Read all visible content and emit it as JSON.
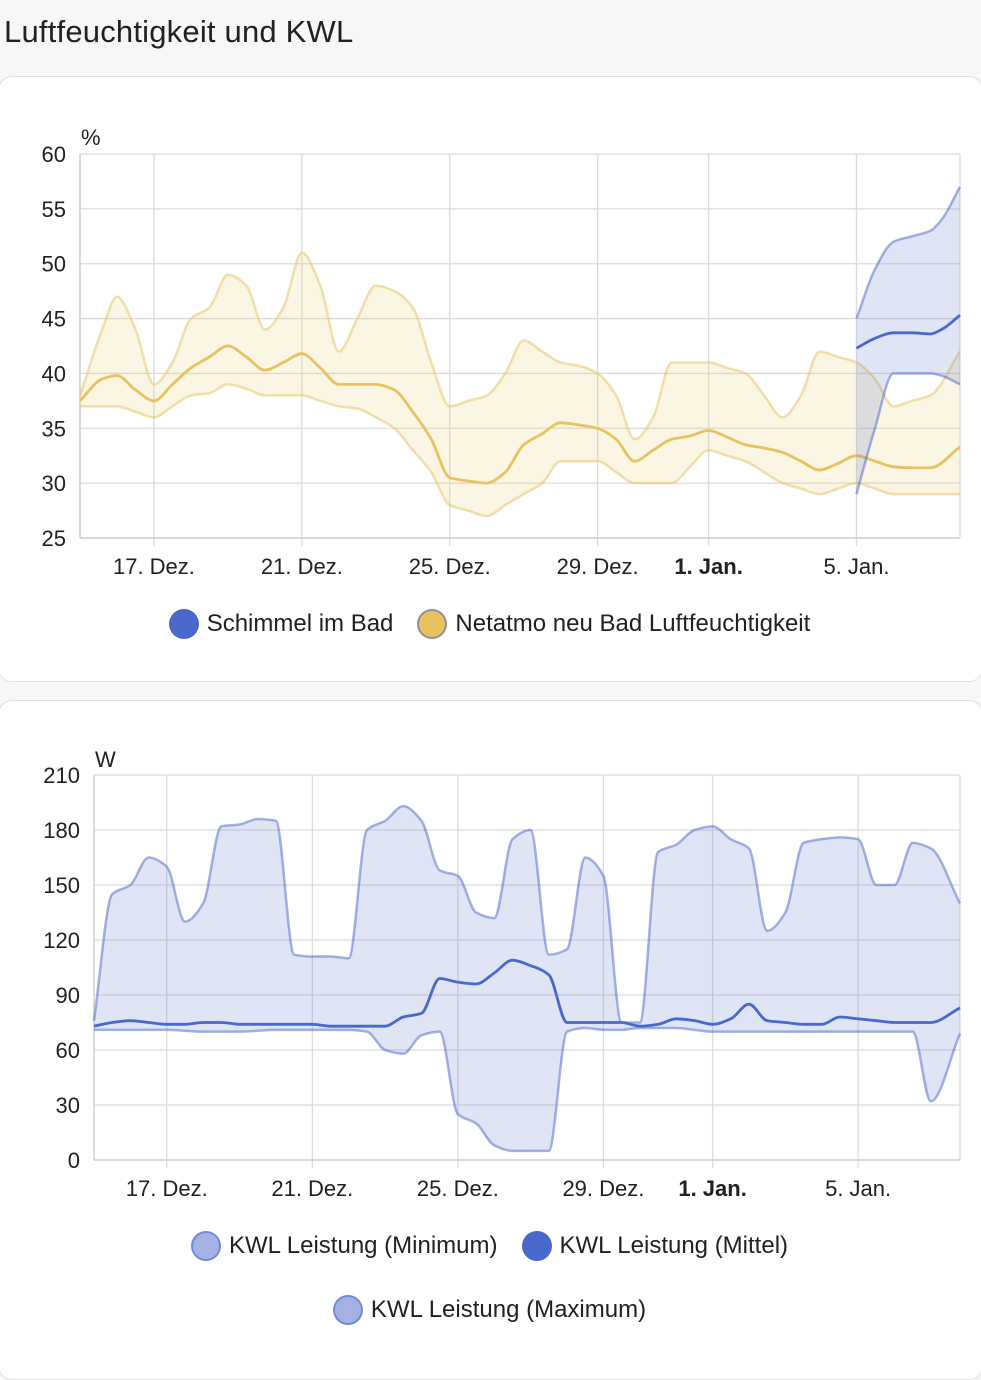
{
  "title": "Luftfeuchtigkeit und KWL",
  "chart_data": [
    {
      "type": "line",
      "unit": "%",
      "ylim": [
        25,
        60
      ],
      "yticks": [
        25,
        30,
        35,
        40,
        45,
        50,
        55,
        60
      ],
      "xlim": [
        0,
        23.8
      ],
      "xticks": [
        {
          "label": "17. Dez.",
          "x": 2,
          "bold": false
        },
        {
          "label": "21. Dez.",
          "x": 6,
          "bold": false
        },
        {
          "label": "25. Dez.",
          "x": 10,
          "bold": false
        },
        {
          "label": "29. Dez.",
          "x": 14,
          "bold": false
        },
        {
          "label": "1. Jan.",
          "x": 17,
          "bold": true
        },
        {
          "label": "5. Jan.",
          "x": 21,
          "bold": false
        }
      ],
      "legend": [
        {
          "label": "Schimmel im Bad",
          "color": "#4a67cc"
        },
        {
          "label": "Netatmo neu Bad Luftfeuchtigkeit",
          "color": "#e8c25e"
        }
      ],
      "series": [
        {
          "name": "Netatmo neu Bad Luftfeuchtigkeit",
          "color": "#e8c25e",
          "x": [
            0,
            0.6,
            1,
            1.5,
            2,
            2.5,
            3,
            3.5,
            4,
            4.5,
            5,
            5.5,
            6,
            6.5,
            7,
            7.5,
            8,
            8.5,
            9,
            9.5,
            10,
            10.5,
            11,
            11.5,
            12,
            12.5,
            13,
            13.5,
            14,
            14.5,
            15,
            15.5,
            16,
            16.5,
            17,
            17.5,
            18,
            18.5,
            19,
            19.5,
            20,
            20.5,
            21,
            21.5,
            22,
            22.5,
            23,
            23.8
          ],
          "mean": [
            37.5,
            39.5,
            39.8,
            38.5,
            37.5,
            39,
            40.5,
            41.5,
            42.5,
            41.5,
            40.3,
            41,
            41.8,
            40.5,
            39,
            39,
            39,
            38.5,
            36.5,
            34,
            30.5,
            30.2,
            30,
            31,
            33.5,
            34.5,
            35.5,
            35.3,
            35,
            34,
            32,
            33,
            34,
            34.3,
            34.8,
            34.2,
            33.5,
            33.2,
            32.8,
            32,
            31.2,
            31.8,
            32.5,
            32,
            31.5,
            31.4,
            31.4,
            33.3
          ],
          "min": [
            37,
            37,
            37,
            36.5,
            36,
            37,
            38,
            38.2,
            39,
            38.6,
            38,
            38,
            38,
            37.5,
            37,
            36.8,
            36,
            35,
            33,
            31,
            28,
            27.5,
            27,
            28,
            29,
            30,
            32,
            32,
            32,
            31,
            30,
            30,
            30,
            31.5,
            33,
            32.5,
            32,
            31,
            30,
            29.5,
            29,
            29.5,
            30,
            29.5,
            29,
            29,
            29,
            29
          ],
          "max": [
            38,
            44,
            47,
            44,
            39,
            41,
            45,
            46,
            49,
            48,
            44,
            46,
            51,
            48,
            42,
            45,
            48,
            47.5,
            46,
            41,
            37,
            37.5,
            38,
            40,
            43,
            42,
            41,
            40.7,
            40,
            38,
            34,
            36,
            41,
            41,
            41,
            40.5,
            40,
            38,
            36,
            38,
            42,
            41.5,
            41,
            39.5,
            37,
            37.5,
            38,
            42
          ]
        },
        {
          "name": "Schimmel im Bad",
          "color": "#4a67cc",
          "x": [
            21,
            21.5,
            22,
            22.5,
            23,
            23.3,
            23.8
          ],
          "mean": [
            42.3,
            43.2,
            43.7,
            43.7,
            43.6,
            44,
            45.3
          ],
          "min": [
            29,
            35,
            40,
            40,
            40,
            39.8,
            39
          ],
          "max": [
            45,
            49.5,
            52,
            52.5,
            53,
            54,
            57
          ]
        }
      ]
    },
    {
      "type": "line",
      "unit": "W",
      "ylim": [
        0,
        210
      ],
      "yticks": [
        0,
        30,
        60,
        90,
        120,
        150,
        180,
        210
      ],
      "xlim": [
        0,
        23.8
      ],
      "xticks": [
        {
          "label": "17. Dez.",
          "x": 2,
          "bold": false
        },
        {
          "label": "21. Dez.",
          "x": 6,
          "bold": false
        },
        {
          "label": "25. Dez.",
          "x": 10,
          "bold": false
        },
        {
          "label": "29. Dez.",
          "x": 14,
          "bold": false
        },
        {
          "label": "1. Jan.",
          "x": 17,
          "bold": true
        },
        {
          "label": "5. Jan.",
          "x": 21,
          "bold": false
        }
      ],
      "legend": [
        {
          "label": "KWL Leistung (Minimum)",
          "color": "#a3b1e3"
        },
        {
          "label": "KWL Leistung (Mittel)",
          "color": "#4a67cc"
        },
        {
          "label": "KWL Leistung (Maximum)",
          "color": "#a3b1e3"
        }
      ],
      "series": [
        {
          "name": "KWL Leistung (Mittel)",
          "color": "#4a67cc",
          "x": [
            0,
            0.5,
            1,
            1.5,
            2,
            2.5,
            3,
            3.5,
            4,
            4.5,
            5,
            5.5,
            6,
            6.5,
            7,
            7.5,
            8,
            8.5,
            9,
            9.5,
            10,
            10.5,
            11,
            11.5,
            12,
            12.5,
            13,
            13.5,
            14,
            14.5,
            15,
            15.5,
            16,
            16.5,
            17,
            17.5,
            18,
            18.5,
            19,
            19.5,
            20,
            20.5,
            21,
            21.5,
            22,
            22.5,
            23,
            23.8
          ],
          "mean": [
            73,
            75,
            76,
            75,
            74,
            74,
            75,
            75,
            74,
            74,
            74,
            74,
            74,
            73,
            73,
            73,
            73,
            78,
            80,
            99,
            97,
            96,
            102,
            109,
            106,
            101,
            75,
            75,
            75,
            75,
            73,
            74,
            77,
            76,
            74,
            77,
            85,
            76,
            75,
            74,
            74,
            78,
            77,
            76,
            75,
            75,
            75,
            83
          ],
          "min": [
            71,
            71,
            71,
            71,
            71,
            70.5,
            70,
            70,
            70,
            70.5,
            71,
            71,
            71,
            71,
            71,
            70,
            60,
            58,
            68,
            70,
            25,
            20,
            8,
            5,
            5,
            5,
            70,
            72,
            71,
            71,
            72,
            72,
            72,
            71,
            70,
            70,
            70,
            70,
            70,
            70,
            70,
            70,
            70,
            70,
            70,
            70,
            32,
            69
          ],
          "max": [
            76,
            145,
            150,
            165,
            160,
            130,
            140,
            182,
            183,
            186,
            185,
            112,
            111,
            111,
            110,
            180,
            185,
            193,
            185,
            158,
            155,
            135,
            132,
            175,
            180,
            112,
            115,
            165,
            155,
            75,
            75,
            168,
            172,
            180,
            182,
            175,
            170,
            125,
            135,
            173,
            175,
            176,
            175,
            150,
            150,
            173,
            170,
            140
          ]
        }
      ]
    }
  ]
}
